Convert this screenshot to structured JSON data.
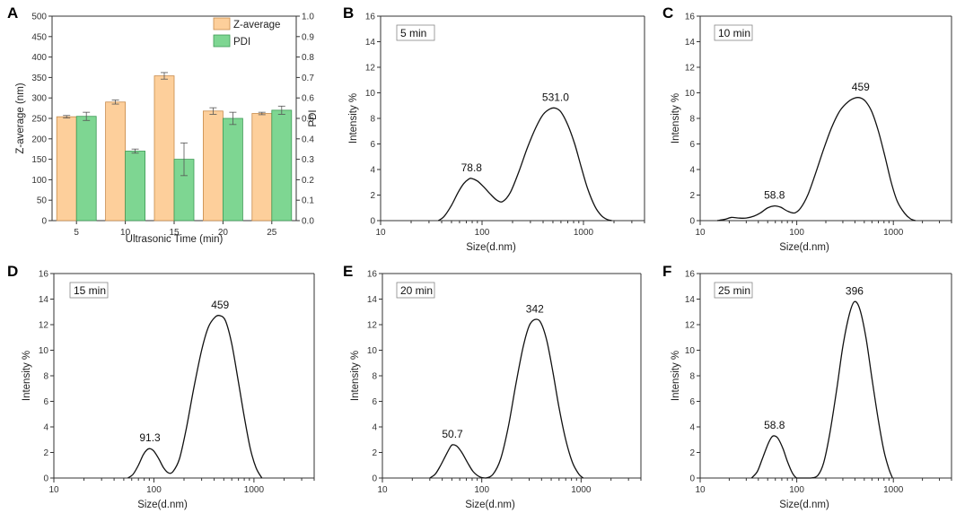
{
  "colors": {
    "z_fill": "#fdcf9b",
    "z_stroke": "#c88a4a",
    "pdi_fill": "#7ed692",
    "pdi_stroke": "#3d9a55",
    "axis": "#333333",
    "curve": "#111111"
  },
  "chart_data": [
    {
      "panel": "A",
      "type": "bar",
      "categories": [
        "5",
        "10",
        "15",
        "20",
        "25"
      ],
      "xlabel": "Ultrasonic  Time (min)",
      "ylabel": "Z-average (nm)",
      "ylabel_right": "PDI",
      "ylim": [
        0,
        500
      ],
      "ylim_right": [
        0,
        1.0
      ],
      "yticks": [
        "0",
        "50",
        "100",
        "150",
        "200",
        "250",
        "300",
        "350",
        "400",
        "450",
        "500"
      ],
      "yticks_right": [
        "0.0",
        "0.1",
        "0.2",
        "0.3",
        "0.4",
        "0.5",
        "0.6",
        "0.7",
        "0.8",
        "0.9",
        "1.0"
      ],
      "legend": [
        "Z-average",
        "PDI"
      ],
      "series": [
        {
          "name": "Z-average",
          "axis": "left",
          "values": [
            254,
            290,
            354,
            268,
            262
          ],
          "errors": [
            3,
            5,
            8,
            8,
            3
          ]
        },
        {
          "name": "PDI",
          "axis": "right",
          "values": [
            0.51,
            0.34,
            0.3,
            0.5,
            0.54
          ],
          "errors": [
            0.02,
            0.01,
            0.08,
            0.03,
            0.02
          ]
        }
      ]
    },
    {
      "panel": "B",
      "type": "line",
      "label": "5 min",
      "xlabel": "Size(d.nm)",
      "ylabel": "Intensity %",
      "xscale": "log",
      "xlim": [
        10,
        4000
      ],
      "xticks": [
        "10",
        "100",
        "1000"
      ],
      "ylim": [
        0,
        16
      ],
      "yticks": [
        "0",
        "2",
        "4",
        "6",
        "8",
        "10",
        "12",
        "14",
        "16"
      ],
      "x": [
        37,
        42,
        50,
        58,
        66,
        74,
        79,
        90,
        105,
        120,
        140,
        160,
        190,
        230,
        280,
        340,
        400,
        470,
        531,
        600,
        700,
        820,
        950,
        1100,
        1300,
        1500,
        1700,
        1900
      ],
      "y": [
        0,
        0.3,
        1.2,
        2.2,
        2.9,
        3.25,
        3.3,
        3.1,
        2.6,
        2.1,
        1.6,
        1.5,
        2.2,
        3.8,
        5.7,
        7.3,
        8.3,
        8.75,
        8.8,
        8.5,
        7.5,
        6,
        4.2,
        2.5,
        1.1,
        0.4,
        0.1,
        0
      ],
      "annotations": [
        {
          "text": "78.8",
          "x": 78.8,
          "y": 3.3
        },
        {
          "text": "531.0",
          "x": 531,
          "y": 8.8
        }
      ]
    },
    {
      "panel": "C",
      "type": "line",
      "label": "10 min",
      "xlabel": "Size(d.nm)",
      "ylabel": "Intensity %",
      "xscale": "log",
      "xlim": [
        10,
        4000
      ],
      "xticks": [
        "10",
        "100",
        "1000"
      ],
      "ylim": [
        0,
        16
      ],
      "yticks": [
        "0",
        "2",
        "4",
        "6",
        "8",
        "10",
        "12",
        "14",
        "16"
      ],
      "x": [
        15,
        18,
        21,
        25,
        30,
        36,
        42,
        50,
        58.8,
        68,
        80,
        95,
        110,
        130,
        155,
        190,
        230,
        280,
        340,
        400,
        459,
        520,
        600,
        700,
        820,
        950,
        1100,
        1300,
        1500,
        1700
      ],
      "y": [
        0,
        0.1,
        0.25,
        0.2,
        0.2,
        0.35,
        0.6,
        1.0,
        1.15,
        1.05,
        0.75,
        0.6,
        1.0,
        2.0,
        3.6,
        5.6,
        7.3,
        8.6,
        9.3,
        9.6,
        9.6,
        9.3,
        8.5,
        7.0,
        5.0,
        3.0,
        1.5,
        0.6,
        0.15,
        0
      ],
      "annotations": [
        {
          "text": "58.8",
          "x": 58.8,
          "y": 1.15
        },
        {
          "text": "459",
          "x": 459,
          "y": 9.6
        }
      ]
    },
    {
      "panel": "D",
      "type": "line",
      "label": "15 min",
      "xlabel": "Size(d.nm)",
      "ylabel": "Intensity %",
      "xscale": "log",
      "xlim": [
        10,
        4000
      ],
      "xticks": [
        "10",
        "100",
        "1000"
      ],
      "ylim": [
        0,
        16
      ],
      "yticks": [
        "0",
        "2",
        "4",
        "6",
        "8",
        "10",
        "12",
        "14",
        "16"
      ],
      "x": [
        55,
        62,
        70,
        78,
        85,
        91.3,
        100,
        112,
        125,
        140,
        155,
        180,
        210,
        250,
        300,
        350,
        410,
        459,
        520,
        600,
        700,
        800,
        920,
        1050,
        1200
      ],
      "y": [
        0,
        0.3,
        1.0,
        1.8,
        2.2,
        2.3,
        2.1,
        1.5,
        0.8,
        0.4,
        0.5,
        1.5,
        3.8,
        7.0,
        10.0,
        11.8,
        12.6,
        12.7,
        12.3,
        10.5,
        7.5,
        4.8,
        2.3,
        0.8,
        0
      ],
      "annotations": [
        {
          "text": "91.3",
          "x": 91.3,
          "y": 2.3
        },
        {
          "text": "459",
          "x": 459,
          "y": 12.7
        }
      ]
    },
    {
      "panel": "E",
      "type": "line",
      "label": "20 min",
      "xlabel": "Size(d.nm)",
      "ylabel": "Intensity %",
      "xscale": "log",
      "xlim": [
        10,
        4000
      ],
      "xticks": [
        "10",
        "100",
        "1000"
      ],
      "ylim": [
        0,
        16
      ],
      "yticks": [
        "0",
        "2",
        "4",
        "6",
        "8",
        "10",
        "12",
        "14",
        "16"
      ],
      "x": [
        30,
        34,
        38,
        43,
        48,
        50.7,
        56,
        63,
        72,
        82,
        95,
        110,
        130,
        155,
        185,
        220,
        260,
        300,
        342,
        390,
        450,
        520,
        600,
        700,
        820,
        950,
        1050
      ],
      "y": [
        0,
        0.3,
        0.9,
        1.7,
        2.4,
        2.6,
        2.5,
        2.0,
        1.2,
        0.5,
        0.1,
        0,
        0.3,
        1.5,
        4.0,
        7.3,
        10.2,
        11.9,
        12.4,
        12.2,
        10.8,
        8.3,
        5.5,
        3.0,
        1.2,
        0.3,
        0
      ],
      "annotations": [
        {
          "text": "50.7",
          "x": 50.7,
          "y": 2.6
        },
        {
          "text": "342",
          "x": 342,
          "y": 12.4
        }
      ]
    },
    {
      "panel": "F",
      "type": "line",
      "label": "25 min",
      "xlabel": "Size(d.nm)",
      "ylabel": "Intensity %",
      "xscale": "log",
      "xlim": [
        10,
        4000
      ],
      "xticks": [
        "10",
        "100",
        "1000"
      ],
      "ylim": [
        0,
        16
      ],
      "yticks": [
        "0",
        "2",
        "4",
        "6",
        "8",
        "10",
        "12",
        "14",
        "16"
      ],
      "x": [
        34,
        39,
        44,
        50,
        55,
        58.8,
        64,
        72,
        80,
        90,
        100,
        120,
        140,
        165,
        190,
        220,
        260,
        300,
        350,
        396,
        450,
        520,
        600,
        700,
        800,
        900,
        980
      ],
      "y": [
        0,
        0.5,
        1.5,
        2.6,
        3.2,
        3.3,
        3.1,
        2.3,
        1.3,
        0.4,
        0,
        0,
        0,
        0.2,
        1.2,
        3.5,
        7.0,
        10.3,
        12.8,
        13.8,
        13.2,
        11.0,
        7.8,
        4.5,
        2.1,
        0.7,
        0
      ],
      "annotations": [
        {
          "text": "58.8",
          "x": 58.8,
          "y": 3.3
        },
        {
          "text": "396",
          "x": 396,
          "y": 13.8
        }
      ]
    }
  ]
}
